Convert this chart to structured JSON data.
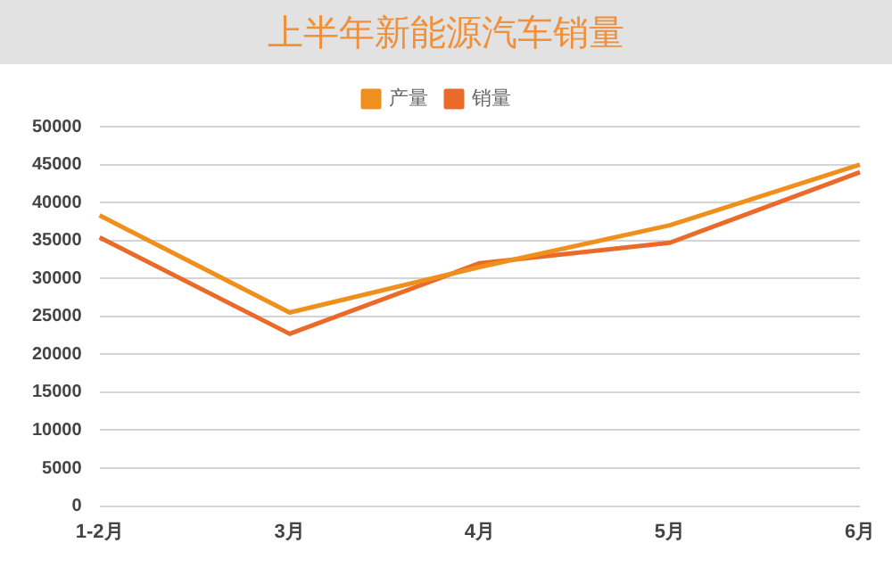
{
  "chart_data": {
    "type": "line",
    "title": "上半年新能源汽车销量",
    "categories": [
      "1-2月",
      "3月",
      "4月",
      "5月",
      "6月"
    ],
    "series": [
      {
        "name": "产量",
        "color": "#f0901c",
        "values": [
          38300,
          25500,
          31500,
          37000,
          45000
        ]
      },
      {
        "name": "销量",
        "color": "#ea6a2a",
        "values": [
          35400,
          22700,
          32000,
          34700,
          44000
        ]
      }
    ],
    "ylim": [
      0,
      50000
    ],
    "yticks": [
      0,
      5000,
      10000,
      15000,
      20000,
      25000,
      30000,
      35000,
      40000,
      45000,
      50000
    ],
    "grid": "y",
    "legend": "top",
    "marker": "none",
    "line_style": "solid"
  }
}
